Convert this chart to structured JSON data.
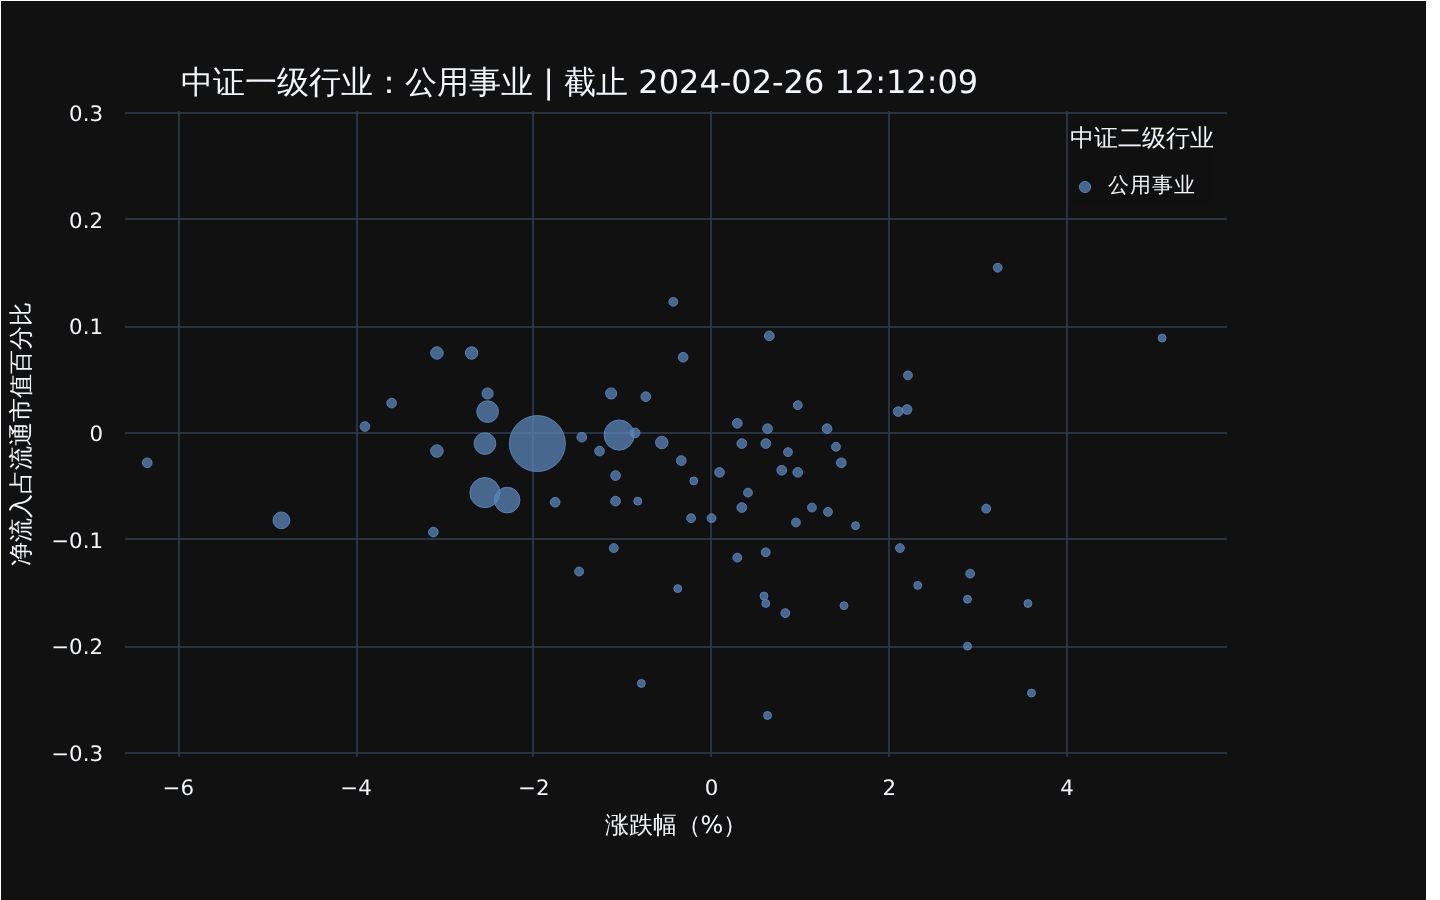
{
  "chart_data": {
    "type": "bubble",
    "title": "中证一级行业：公用事业 | 截止 2024-02-26 12:12:09",
    "xlabel": "涨跌幅（%）",
    "ylabel": "净流入占流通市值百分比",
    "legend_title": "中证二级行业",
    "series": [
      {
        "name": "公用事业",
        "color": "#5b84b8",
        "x": [
          -1.96,
          -1.04,
          -2.55,
          -2.3,
          -2.52,
          -2.55,
          -4.84,
          -3.09,
          -2.7,
          -3.09,
          -2.52,
          -1.13,
          -0.74,
          -0.56,
          -3.6,
          -3.9,
          -3.13,
          -1.1,
          -1.49,
          -0.79,
          -1.08,
          -1.08,
          -1.76,
          -0.83,
          -1.46,
          -1.26,
          -0.86,
          -6.35,
          -0.43,
          0.65,
          -0.32,
          3.22,
          2.21,
          2.1,
          2.2,
          1.3,
          0.63,
          0.29,
          0.97,
          5.07,
          -0.34,
          0.09,
          0.34,
          0.61,
          0.86,
          0.79,
          0.97,
          1.46,
          1.4,
          0.41,
          0.34,
          -0.23,
          0.0,
          1.13,
          1.31,
          0.95,
          1.62,
          3.09,
          0.61,
          0.29,
          -0.38,
          0.61,
          0.83,
          1.49,
          2.12,
          2.32,
          2.91,
          2.88,
          3.56,
          3.6,
          0.63,
          2.88,
          0.59,
          -0.2
        ],
        "values": [
          -0.01,
          -0.002,
          -0.056,
          -0.063,
          0.02,
          -0.01,
          -0.082,
          0.075,
          0.075,
          -0.017,
          0.037,
          0.037,
          0.034,
          -0.009,
          0.028,
          0.006,
          -0.093,
          -0.108,
          -0.13,
          -0.235,
          -0.04,
          -0.064,
          -0.065,
          -0.064,
          -0.004,
          -0.017,
          0.0,
          -0.028,
          0.123,
          0.091,
          0.071,
          0.155,
          0.054,
          0.02,
          0.022,
          0.004,
          0.004,
          0.009,
          0.026,
          0.089,
          -0.026,
          -0.037,
          -0.01,
          -0.01,
          -0.018,
          -0.035,
          -0.037,
          -0.028,
          -0.013,
          -0.056,
          -0.07,
          -0.08,
          -0.08,
          -0.07,
          -0.074,
          -0.084,
          -0.087,
          -0.071,
          -0.112,
          -0.117,
          -0.146,
          -0.16,
          -0.169,
          -0.162,
          -0.108,
          -0.143,
          -0.132,
          -0.156,
          -0.16,
          -0.244,
          -0.265,
          -0.2,
          -0.153,
          -0.045
        ],
        "sizes": [
          1,
          0.29,
          0.29,
          0.21,
          0.15,
          0.15,
          0.09,
          0.05,
          0.05,
          0.05,
          0.04,
          0.04,
          0.03,
          0.05,
          0.03,
          0.03,
          0.03,
          0.025,
          0.025,
          0.02,
          0.03,
          0.03,
          0.03,
          0.02,
          0.03,
          0.03,
          0.03,
          0.03,
          0.025,
          0.03,
          0.03,
          0.025,
          0.025,
          0.03,
          0.03,
          0.03,
          0.03,
          0.03,
          0.025,
          0.02,
          0.03,
          0.03,
          0.03,
          0.03,
          0.025,
          0.03,
          0.03,
          0.03,
          0.025,
          0.025,
          0.03,
          0.025,
          0.025,
          0.025,
          0.025,
          0.025,
          0.02,
          0.025,
          0.025,
          0.025,
          0.02,
          0.02,
          0.025,
          0.02,
          0.025,
          0.02,
          0.025,
          0.02,
          0.02,
          0.02,
          0.02,
          0.02,
          0.02,
          0.02
        ]
      }
    ],
    "xlim": [
      -6.6,
      5.8
    ],
    "ylim": [
      -0.304,
      0.302
    ],
    "xticks": [
      {
        "value": -6,
        "label": "−6"
      },
      {
        "value": -4,
        "label": "−4"
      },
      {
        "value": -2,
        "label": "−2"
      },
      0,
      2,
      4
    ],
    "yticks": [
      {
        "value": -0.3,
        "label": "−0.3"
      },
      {
        "value": -0.2,
        "label": "−0.2"
      },
      {
        "value": -0.1,
        "label": "−0.1"
      },
      0,
      0.1,
      0.2,
      0.3
    ],
    "grid": true,
    "legend": "top right",
    "marker": "circle"
  }
}
